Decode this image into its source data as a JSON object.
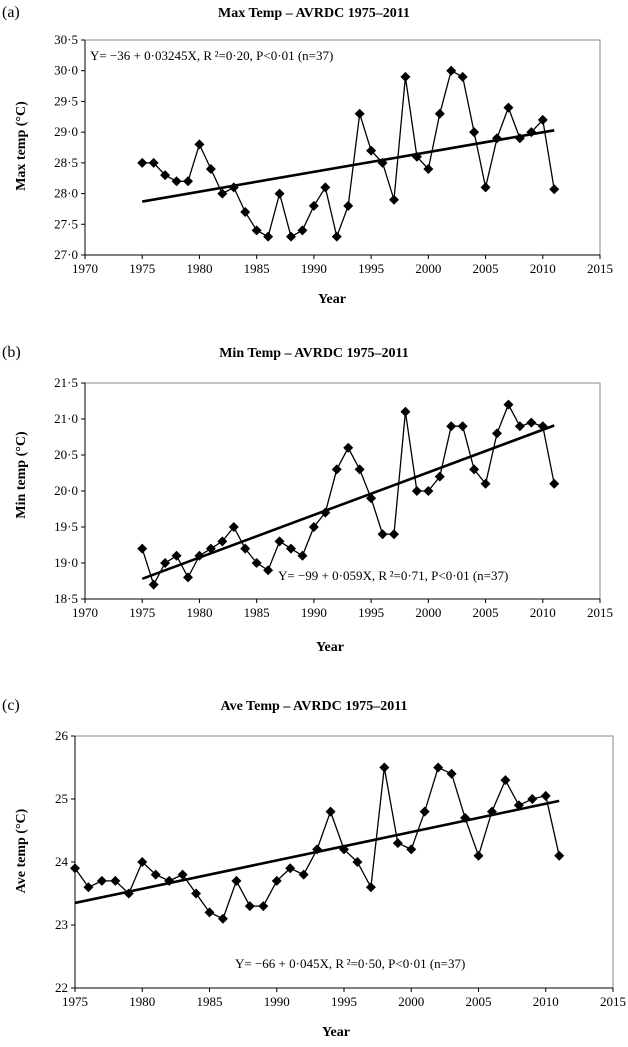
{
  "chart_data": [
    {
      "id": "a",
      "panel_label": "(a)",
      "type": "line",
      "title": "Max Temp – AVRDC 1975–2011",
      "xlabel": "Year",
      "ylabel": "Max temp (°C)",
      "xlim": [
        1970,
        2015
      ],
      "ylim": [
        27.0,
        30.5
      ],
      "xticks": [
        "1970",
        "1975",
        "1980",
        "1985",
        "1990",
        "1995",
        "2000",
        "2005",
        "2010",
        "2015"
      ],
      "yticks": [
        "27·0",
        "27·5",
        "28·0",
        "28·5",
        "29·0",
        "29·5",
        "30·0",
        "30·5"
      ],
      "annotation": "Y= −36 + 0·03245X,    R ²=0·20, P<0·01 (n=37)",
      "trend": {
        "x": [
          1975,
          2011
        ],
        "y": [
          27.87,
          29.03
        ]
      },
      "x": [
        1975,
        1976,
        1977,
        1978,
        1979,
        1980,
        1981,
        1982,
        1983,
        1984,
        1985,
        1986,
        1987,
        1988,
        1989,
        1990,
        1991,
        1992,
        1993,
        1994,
        1995,
        1996,
        1997,
        1998,
        1999,
        2000,
        2001,
        2002,
        2003,
        2004,
        2005,
        2006,
        2007,
        2008,
        2009,
        2010,
        2011
      ],
      "y": [
        28.5,
        28.5,
        28.3,
        28.2,
        28.2,
        28.8,
        28.4,
        28.0,
        28.1,
        27.7,
        27.4,
        27.3,
        28.0,
        27.3,
        27.4,
        27.8,
        28.1,
        27.3,
        27.8,
        29.3,
        28.7,
        28.5,
        27.9,
        29.9,
        28.6,
        28.4,
        29.3,
        30.0,
        29.9,
        29.0,
        28.1,
        28.9,
        29.4,
        28.9,
        29.0,
        29.2,
        28.07
      ]
    },
    {
      "id": "b",
      "panel_label": "(b)",
      "type": "line",
      "title": "Min Temp – AVRDC  1975–2011",
      "xlabel": "Year",
      "ylabel": "Min temp (°C)",
      "xlim": [
        1970,
        2015
      ],
      "ylim": [
        18.5,
        21.5
      ],
      "xticks": [
        "1970",
        "1975",
        "1980",
        "1985",
        "1990",
        "1995",
        "2000",
        "2005",
        "2010",
        "2015"
      ],
      "yticks": [
        "18·5",
        "19·0",
        "19·5",
        "20·0",
        "20·5",
        "21·0",
        "21·5"
      ],
      "annotation": "Y= −99 + 0·059X,    R ²=0·71,  P<0·01 (n=37)",
      "trend": {
        "x": [
          1975,
          2011
        ],
        "y": [
          18.78,
          20.91
        ]
      },
      "x": [
        1975,
        1976,
        1977,
        1978,
        1979,
        1980,
        1981,
        1982,
        1983,
        1984,
        1985,
        1986,
        1987,
        1988,
        1989,
        1990,
        1991,
        1992,
        1993,
        1994,
        1995,
        1996,
        1997,
        1998,
        1999,
        2000,
        2001,
        2002,
        2003,
        2004,
        2005,
        2006,
        2007,
        2008,
        2009,
        2010,
        2011
      ],
      "y": [
        19.2,
        18.7,
        19.0,
        19.1,
        18.8,
        19.1,
        19.2,
        19.3,
        19.5,
        19.2,
        19.0,
        18.9,
        19.3,
        19.2,
        19.1,
        19.5,
        19.7,
        20.3,
        20.6,
        20.3,
        19.9,
        19.4,
        19.4,
        21.1,
        20.0,
        20.0,
        20.2,
        20.9,
        20.9,
        20.3,
        20.1,
        20.8,
        21.2,
        20.9,
        20.95,
        20.9,
        20.1
      ]
    },
    {
      "id": "c",
      "panel_label": "(c)",
      "type": "line",
      "title": "Ave Temp – AVRDC  1975–2011",
      "xlabel": "Year",
      "ylabel": "Ave temp (°C)",
      "xlim": [
        1975,
        2015
      ],
      "ylim": [
        22,
        26
      ],
      "xticks": [
        "1975",
        "1980",
        "1985",
        "1990",
        "1995",
        "2000",
        "2005",
        "2010",
        "2015"
      ],
      "yticks": [
        "22",
        "23",
        "24",
        "25",
        "26"
      ],
      "annotation": "Y= −66 + 0·045X,   R ²=0·50,   P<0·01 (n=37)",
      "trend": {
        "x": [
          1975,
          2011
        ],
        "y": [
          23.35,
          24.97
        ]
      },
      "x": [
        1975,
        1976,
        1977,
        1978,
        1979,
        1980,
        1981,
        1982,
        1983,
        1984,
        1985,
        1986,
        1987,
        1988,
        1989,
        1990,
        1991,
        1992,
        1993,
        1994,
        1995,
        1996,
        1997,
        1998,
        1999,
        2000,
        2001,
        2002,
        2003,
        2004,
        2005,
        2006,
        2007,
        2008,
        2009,
        2010,
        2011
      ],
      "y": [
        23.9,
        23.6,
        23.7,
        23.7,
        23.5,
        24.0,
        23.8,
        23.7,
        23.8,
        23.5,
        23.2,
        23.1,
        23.7,
        23.3,
        23.3,
        23.7,
        23.9,
        23.8,
        24.2,
        24.8,
        24.2,
        24.0,
        23.6,
        25.5,
        24.3,
        24.2,
        24.8,
        25.5,
        25.4,
        24.7,
        24.1,
        24.8,
        25.3,
        24.9,
        25.0,
        25.05,
        24.1
      ]
    }
  ]
}
